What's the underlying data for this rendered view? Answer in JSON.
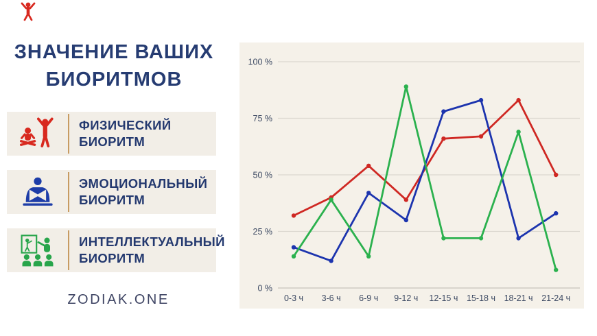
{
  "title": {
    "line1": "ЗНАЧЕНИЕ ВАШИХ",
    "line2": "БИОРИТМОВ"
  },
  "brand": {
    "name": "ZODIAK.ONE"
  },
  "legend": [
    {
      "id": "physical",
      "line1": "ФИЗИЧЕСКИЙ",
      "line2": "БИОРИТМ",
      "color": "#d8291f",
      "icon": "exercise-people-icon"
    },
    {
      "id": "emotional",
      "line1": "ЭМОЦИОНАЛЬНЫЙ",
      "line2": "БИОРИТМ",
      "color": "#1e3da8",
      "icon": "reading-person-icon"
    },
    {
      "id": "intellectual",
      "line1": "ИНТЕЛЛЕКТУАЛЬНЫЙ",
      "line2": "БИОРИТМ",
      "color": "#28a54b",
      "icon": "presenter-group-icon"
    }
  ],
  "chart_data": {
    "type": "line",
    "categories": [
      "0-3 ч",
      "3-6 ч",
      "6-9 ч",
      "9-12 ч",
      "12-15 ч",
      "15-18 ч",
      "18-21 ч",
      "21-24 ч"
    ],
    "series": [
      {
        "id": "physical",
        "name": "Физический биоритм",
        "color": "#cf2823",
        "values": [
          32,
          40,
          54,
          39,
          66,
          67,
          83,
          50
        ]
      },
      {
        "id": "emotional",
        "name": "Эмоциональный биоритм",
        "color": "#1c34ae",
        "values": [
          18,
          12,
          42,
          30,
          78,
          83,
          22,
          33
        ]
      },
      {
        "id": "intellectual",
        "name": "Интеллектуальный биоритм",
        "color": "#2bb14e",
        "values": [
          14,
          39,
          14,
          89,
          22,
          22,
          69,
          8
        ]
      }
    ],
    "xlabel": "",
    "ylabel": "",
    "ylim": [
      0,
      100
    ],
    "y_tick_values": [
      0,
      25,
      50,
      75,
      100
    ],
    "y_ticks": [
      "0 %",
      "25 %",
      "50 %",
      "75 %",
      "100 %"
    ],
    "grid": true,
    "legend_position": "left-cards",
    "panel_bg": "#f5f1e9",
    "gridline_color": "#dcd8d0",
    "axis_line_color": "#c6c2ba",
    "tick_label_color": "#3d4a63",
    "markers": true
  },
  "colors": {
    "title_navy": "#263c72",
    "card_bg": "#f2eee7",
    "card_divider": "#c79b62",
    "page_bg": "#ffffff"
  }
}
